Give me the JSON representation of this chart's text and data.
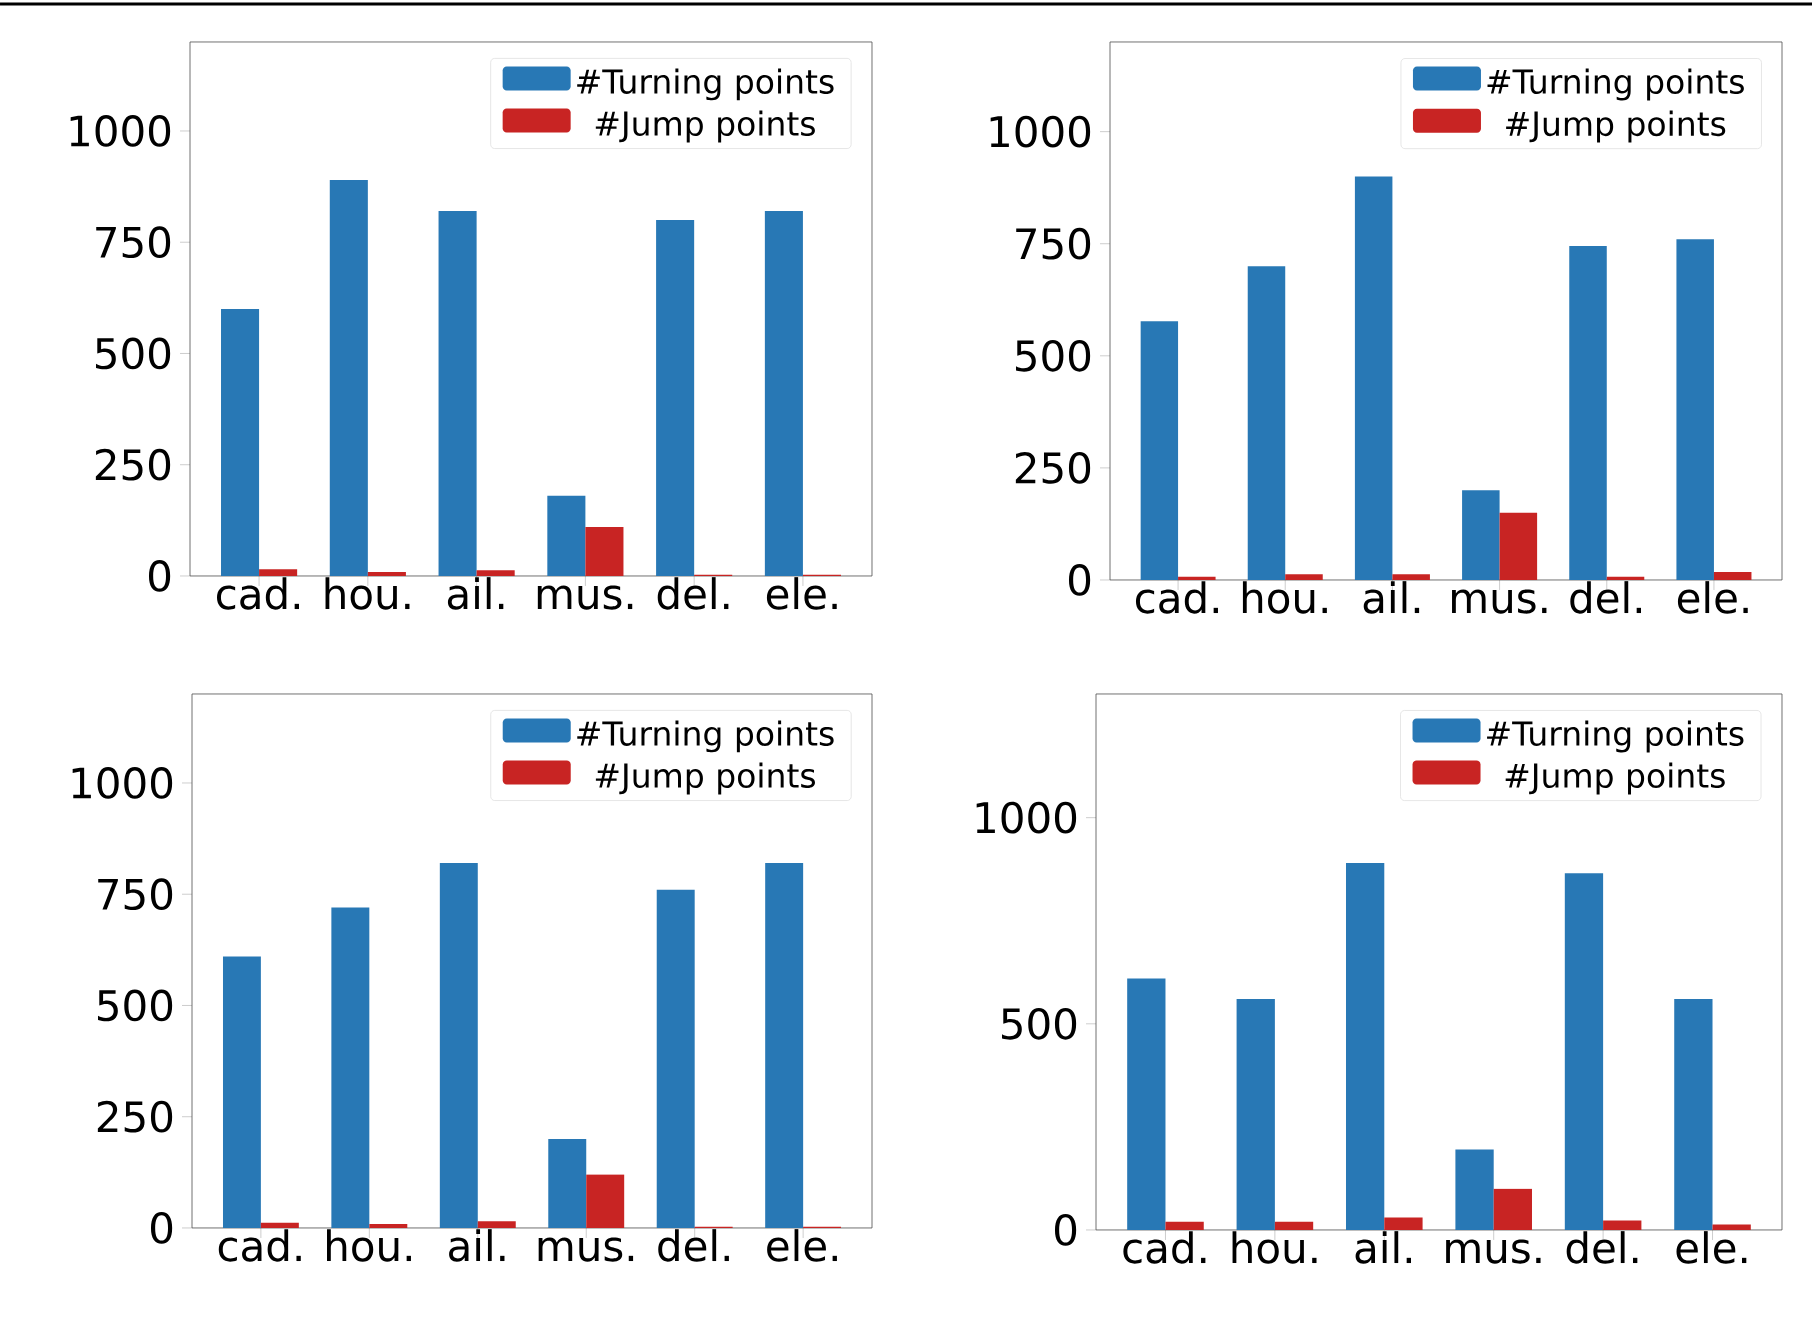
{
  "chart_data": [
    {
      "type": "bar",
      "categories": [
        "cad.",
        "hou.",
        "ail.",
        "mus.",
        "del.",
        "ele."
      ],
      "series": [
        {
          "name": "#Turning points",
          "color": "#2878b5",
          "values": [
            600,
            890,
            820,
            180,
            800,
            820
          ]
        },
        {
          "name": "#Jump points",
          "color": "#c82423",
          "values": [
            15,
            9,
            13,
            110,
            3,
            3
          ]
        }
      ],
      "ylim": [
        0,
        1200
      ],
      "yticks": [
        0,
        250,
        500,
        750,
        1000
      ],
      "legend": "top right"
    },
    {
      "type": "bar",
      "categories": [
        "cad.",
        "hou.",
        "ail.",
        "mus.",
        "del.",
        "ele."
      ],
      "series": [
        {
          "name": "#Turning points",
          "color": "#2878b5",
          "values": [
            577,
            700,
            900,
            200,
            745,
            760
          ]
        },
        {
          "name": "#Jump points",
          "color": "#c82423",
          "values": [
            7,
            13,
            13,
            150,
            7,
            18
          ]
        }
      ],
      "ylim": [
        0,
        1200
      ],
      "yticks": [
        0,
        250,
        500,
        750,
        1000
      ],
      "legend": "top right"
    },
    {
      "type": "bar",
      "categories": [
        "cad.",
        "hou.",
        "ail.",
        "mus.",
        "del.",
        "ele."
      ],
      "series": [
        {
          "name": "#Turning points",
          "color": "#2878b5",
          "values": [
            610,
            720,
            820,
            200,
            760,
            820
          ]
        },
        {
          "name": "#Jump points",
          "color": "#c82423",
          "values": [
            12,
            9,
            15,
            120,
            3,
            3
          ]
        }
      ],
      "ylim": [
        0,
        1200
      ],
      "yticks": [
        0,
        250,
        500,
        750,
        1000
      ],
      "legend": "top right"
    },
    {
      "type": "bar",
      "categories": [
        "cad.",
        "hou.",
        "ail.",
        "mus.",
        "del.",
        "ele."
      ],
      "series": [
        {
          "name": "#Turning points",
          "color": "#2878b5",
          "values": [
            610,
            560,
            890,
            195,
            865,
            560
          ]
        },
        {
          "name": "#Jump points",
          "color": "#c82423",
          "values": [
            20,
            20,
            30,
            100,
            23,
            13
          ]
        }
      ],
      "ylim": [
        0,
        1300
      ],
      "yticks": [
        0,
        500,
        1000
      ],
      "legend": "top right"
    }
  ]
}
